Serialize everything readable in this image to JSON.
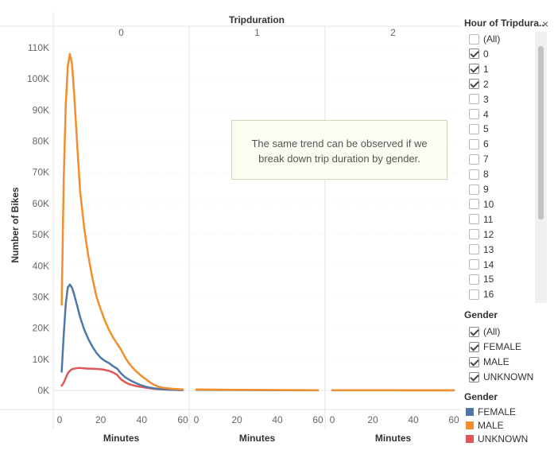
{
  "header": {
    "title": "Tripduration"
  },
  "annotation": {
    "line1": "The same trend can be observed if we",
    "line2": "break down trip duration by gender."
  },
  "hour_filter": {
    "title": "Hour of Tripdura..",
    "items": [
      {
        "label": "(All)",
        "checked": false
      },
      {
        "label": "0",
        "checked": true
      },
      {
        "label": "1",
        "checked": true
      },
      {
        "label": "2",
        "checked": true
      },
      {
        "label": "3",
        "checked": false
      },
      {
        "label": "4",
        "checked": false
      },
      {
        "label": "5",
        "checked": false
      },
      {
        "label": "6",
        "checked": false
      },
      {
        "label": "7",
        "checked": false
      },
      {
        "label": "8",
        "checked": false
      },
      {
        "label": "9",
        "checked": false
      },
      {
        "label": "10",
        "checked": false
      },
      {
        "label": "11",
        "checked": false
      },
      {
        "label": "12",
        "checked": false
      },
      {
        "label": "13",
        "checked": false
      },
      {
        "label": "14",
        "checked": false
      },
      {
        "label": "15",
        "checked": false
      },
      {
        "label": "16",
        "checked": false
      }
    ]
  },
  "gender_filter": {
    "title": "Gender",
    "items": [
      {
        "label": "(All)",
        "checked": true
      },
      {
        "label": "FEMALE",
        "checked": true
      },
      {
        "label": "MALE",
        "checked": true
      },
      {
        "label": "UNKNOWN",
        "checked": true
      }
    ]
  },
  "chart_data": {
    "type": "line",
    "column_header": "Tripduration",
    "panels": [
      "0",
      "1",
      "2"
    ],
    "xlabel": "Minutes",
    "ylabel": "Number of Bikes",
    "xlim": [
      0,
      60
    ],
    "xticks": [
      0,
      20,
      40,
      60
    ],
    "ylim": [
      0,
      110000
    ],
    "yticks": [
      0,
      10000,
      20000,
      30000,
      40000,
      50000,
      60000,
      70000,
      80000,
      90000,
      100000,
      110000
    ],
    "ytick_labels": [
      "0K",
      "10K",
      "20K",
      "30K",
      "40K",
      "50K",
      "60K",
      "70K",
      "80K",
      "90K",
      "100K",
      "110K"
    ],
    "legend": {
      "title": "Gender",
      "placement": "right",
      "entries": [
        {
          "name": "FEMALE",
          "color": "#4e79a7"
        },
        {
          "name": "MALE",
          "color": "#f28e2b"
        },
        {
          "name": "UNKNOWN",
          "color": "#e15759"
        }
      ]
    },
    "series": [
      {
        "name": "MALE",
        "panel": "0",
        "color": "#f28e2b",
        "x": [
          1,
          2,
          3,
          4,
          5,
          6,
          7,
          8,
          9,
          10,
          12,
          14,
          16,
          18,
          20,
          22,
          24,
          26,
          28,
          30,
          32,
          34,
          36,
          38,
          40,
          42,
          44,
          46,
          48,
          50,
          55,
          60
        ],
        "y": [
          27500,
          68000,
          92000,
          104000,
          108000,
          105000,
          96000,
          85000,
          74000,
          64000,
          52000,
          43000,
          36000,
          30000,
          26000,
          22500,
          19500,
          17000,
          15000,
          13000,
          10500,
          8500,
          7000,
          5700,
          4600,
          3600,
          2600,
          1800,
          1200,
          900,
          500,
          300
        ]
      },
      {
        "name": "FEMALE",
        "panel": "0",
        "color": "#4e79a7",
        "x": [
          1,
          2,
          3,
          4,
          5,
          6,
          7,
          8,
          9,
          10,
          12,
          14,
          16,
          18,
          20,
          22,
          24,
          26,
          28,
          30,
          32,
          34,
          36,
          38,
          40,
          42,
          44,
          46,
          48,
          50,
          55,
          60
        ],
        "y": [
          6000,
          18000,
          28000,
          33000,
          34000,
          33000,
          31000,
          28500,
          26000,
          23500,
          19500,
          16500,
          14000,
          12000,
          10500,
          9500,
          8800,
          7800,
          7000,
          5400,
          4200,
          3400,
          2700,
          2100,
          1600,
          1200,
          900,
          700,
          500,
          400,
          200,
          100
        ]
      },
      {
        "name": "UNKNOWN",
        "panel": "0",
        "color": "#e15759",
        "x": [
          1,
          2,
          3,
          4,
          5,
          6,
          7,
          8,
          9,
          10,
          12,
          14,
          16,
          18,
          20,
          22,
          24,
          26,
          28,
          30,
          32,
          34,
          36,
          38,
          40,
          42,
          44,
          46,
          48,
          50,
          55,
          60
        ],
        "y": [
          1500,
          2500,
          4000,
          5500,
          6300,
          6800,
          7000,
          7100,
          7200,
          7200,
          7100,
          7000,
          7000,
          6900,
          6800,
          6600,
          6300,
          5800,
          5000,
          3500,
          2600,
          2000,
          1600,
          1300,
          1100,
          900,
          700,
          500,
          400,
          300,
          200,
          100
        ]
      },
      {
        "name": "MALE",
        "panel": "1",
        "color": "#f28e2b",
        "x": [
          0,
          10,
          20,
          30,
          40,
          50,
          60
        ],
        "y": [
          300,
          250,
          200,
          150,
          120,
          100,
          80
        ]
      },
      {
        "name": "FEMALE",
        "panel": "1",
        "color": "#4e79a7",
        "x": [
          0,
          10,
          20,
          30,
          40,
          50,
          60
        ],
        "y": [
          200,
          150,
          120,
          100,
          80,
          60,
          50
        ]
      },
      {
        "name": "MALE",
        "panel": "2",
        "color": "#f28e2b",
        "x": [
          0,
          10,
          20,
          30,
          40,
          50,
          60
        ],
        "y": [
          80,
          70,
          60,
          50,
          40,
          40,
          30
        ]
      },
      {
        "name": "FEMALE",
        "panel": "2",
        "color": "#4e79a7",
        "x": [
          0,
          10,
          20,
          30,
          40,
          50,
          60
        ],
        "y": [
          60,
          50,
          40,
          40,
          30,
          30,
          20
        ]
      }
    ]
  }
}
